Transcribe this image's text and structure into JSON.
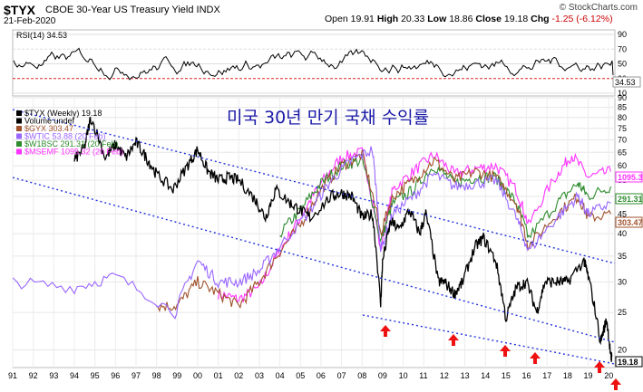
{
  "header": {
    "symbol": "$TYX",
    "description": "CBOE 30-Year US Treasury Yield",
    "exchange": "INDX",
    "date": "21-Feb-2020",
    "open_label": "Open",
    "open": "19.91",
    "high_label": "High",
    "high": "20.33",
    "low_label": "Low",
    "low": "18.86",
    "close_label": "Close",
    "close": "19.18",
    "chg_label": "Chg",
    "chg": "-1.25 (-6.12%)",
    "brand": "© StockCharts.com"
  },
  "rsi_panel": {
    "label": "RSI(14) 34.53",
    "current": 34.53,
    "ticks": [
      "90",
      "70",
      "50",
      "30",
      "10"
    ],
    "overbought": 70,
    "oversold": 30
  },
  "annotation": "미국 30년 만기 국채 수익률",
  "legend": [
    {
      "text": "$TYX (Weekly) 19.18",
      "color": "#000000"
    },
    {
      "text": "Volume undef",
      "color": "#000000"
    },
    {
      "text": "$GYX 303.47",
      "color": "#a0522d"
    },
    {
      "text": "$WTIC 53.88 (20 Feb)",
      "color": "#9966ff"
    },
    {
      "text": "$W1BSC 291.31 (20 Feb)",
      "color": "#2e8b2e"
    },
    {
      "text": "$MSEMF 1095.32 (20 Feb)",
      "color": "#ff33ff"
    }
  ],
  "last_value_tags": [
    {
      "text": "1095.32",
      "color": "#ff33ff"
    },
    {
      "text": "291.31",
      "color": "#2e8b2e"
    },
    {
      "text": "303.47",
      "color": "#a0522d"
    },
    {
      "text": "19.18",
      "color": "#000000"
    }
  ],
  "chart_data": {
    "type": "line",
    "y_scale": "log",
    "ylim": [
      18,
      90
    ],
    "y_ticks": [
      "90",
      "85",
      "80",
      "75",
      "70",
      "65",
      "60",
      "55",
      "50",
      "45",
      "40",
      "35",
      "30",
      "25",
      "20"
    ],
    "x_ticks": [
      "91",
      "92",
      "93",
      "94",
      "95",
      "96",
      "97",
      "98",
      "99",
      "00",
      "01",
      "02",
      "03",
      "04",
      "05",
      "06",
      "07",
      "08",
      "09",
      "10",
      "11",
      "12",
      "13",
      "14",
      "15",
      "16",
      "17",
      "18",
      "19",
      "20"
    ],
    "series": [
      {
        "name": "$TYX (Weekly)",
        "color": "#000000",
        "x": [
          1994.0,
          1994.5,
          1994.8,
          1995.5,
          1996.0,
          1996.5,
          1997.0,
          1997.5,
          1998.0,
          1998.8,
          1999.5,
          2000.0,
          2000.5,
          2001.0,
          2001.5,
          2002.0,
          2002.8,
          2003.3,
          2003.8,
          2004.5,
          2005.0,
          2005.5,
          2006.5,
          2007.0,
          2007.5,
          2008.0,
          2008.5,
          2008.9,
          2009.0,
          2009.4,
          2009.8,
          2010.3,
          2010.8,
          2011.1,
          2011.7,
          2012.0,
          2012.5,
          2012.9,
          2013.5,
          2013.9,
          2014.5,
          2015.0,
          2015.5,
          2016.0,
          2016.5,
          2016.9,
          2017.5,
          2018.0,
          2018.8,
          2019.0,
          2019.6,
          2019.9,
          2020.1,
          2020.15
        ],
        "y": [
          62,
          67,
          80,
          63,
          68,
          63,
          69,
          63,
          57,
          52,
          60,
          66,
          58,
          55,
          56,
          55,
          49,
          44,
          52,
          48,
          46,
          44,
          50,
          51,
          50,
          44,
          45,
          26,
          34,
          43,
          41,
          46,
          40,
          45,
          30,
          30,
          28,
          30,
          37,
          39,
          34,
          24,
          29,
          30,
          25,
          30,
          30,
          30,
          34,
          31,
          21,
          24,
          19.2,
          19.18
        ]
      },
      {
        "name": "$WTIC",
        "color": "#9966ff",
        "x": [
          1991,
          1994,
          1996,
          1998.9,
          2000,
          2001,
          2002,
          2003,
          2004,
          2005.5,
          2006.5,
          2007.5,
          2008.5,
          2008.9,
          2009.5,
          2010.5,
          2011.5,
          2012.5,
          2013.5,
          2014.5,
          2015.5,
          2016.1,
          2017.5,
          2018.5,
          2019,
          2020.1
        ],
        "y": [
          30,
          29,
          31,
          25,
          34,
          30,
          30,
          32,
          37,
          46,
          55,
          62,
          66,
          36,
          45,
          50,
          57,
          53,
          54,
          55,
          44,
          36,
          44,
          50,
          45,
          48
        ]
      },
      {
        "name": "$GYX",
        "color": "#a0522d",
        "x": [
          1998,
          1999,
          2000,
          2001,
          2002,
          2003,
          2004,
          2005,
          2006,
          2007,
          2008,
          2008.9,
          2009.5,
          2010.5,
          2011.5,
          2012.5,
          2013.5,
          2014.5,
          2015.5,
          2016.1,
          2017.5,
          2018.5,
          2019,
          2020.1
        ],
        "y": [
          26,
          26,
          30,
          28,
          26,
          30,
          36,
          42,
          52,
          60,
          64,
          40,
          50,
          55,
          62,
          55,
          58,
          56,
          48,
          37,
          45,
          50,
          44,
          45
        ]
      },
      {
        "name": "$W1BSC",
        "color": "#2e8b2e",
        "x": [
          2004,
          2005,
          2006,
          2007,
          2008,
          2008.9,
          2009.5,
          2010.5,
          2011.5,
          2012.5,
          2013.5,
          2014.5,
          2015.5,
          2016.1,
          2017.5,
          2018.5,
          2019,
          2020.1
        ],
        "y": [
          40,
          46,
          54,
          60,
          62,
          38,
          48,
          52,
          60,
          54,
          56,
          56,
          48,
          39,
          48,
          54,
          50,
          53
        ]
      },
      {
        "name": "$MSEMF",
        "color": "#ff33ff",
        "x": [
          2001,
          2002,
          2003,
          2004,
          2005,
          2006,
          2007,
          2008,
          2008.9,
          2009.5,
          2010.5,
          2011.5,
          2012.5,
          2013.5,
          2014.5,
          2015.5,
          2016.1,
          2017.5,
          2018.2,
          2019,
          2020.1
        ],
        "y": [
          28,
          27,
          29,
          36,
          44,
          54,
          63,
          65,
          36,
          52,
          58,
          64,
          57,
          59,
          60,
          52,
          42,
          57,
          64,
          56,
          58
        ]
      }
    ]
  }
}
